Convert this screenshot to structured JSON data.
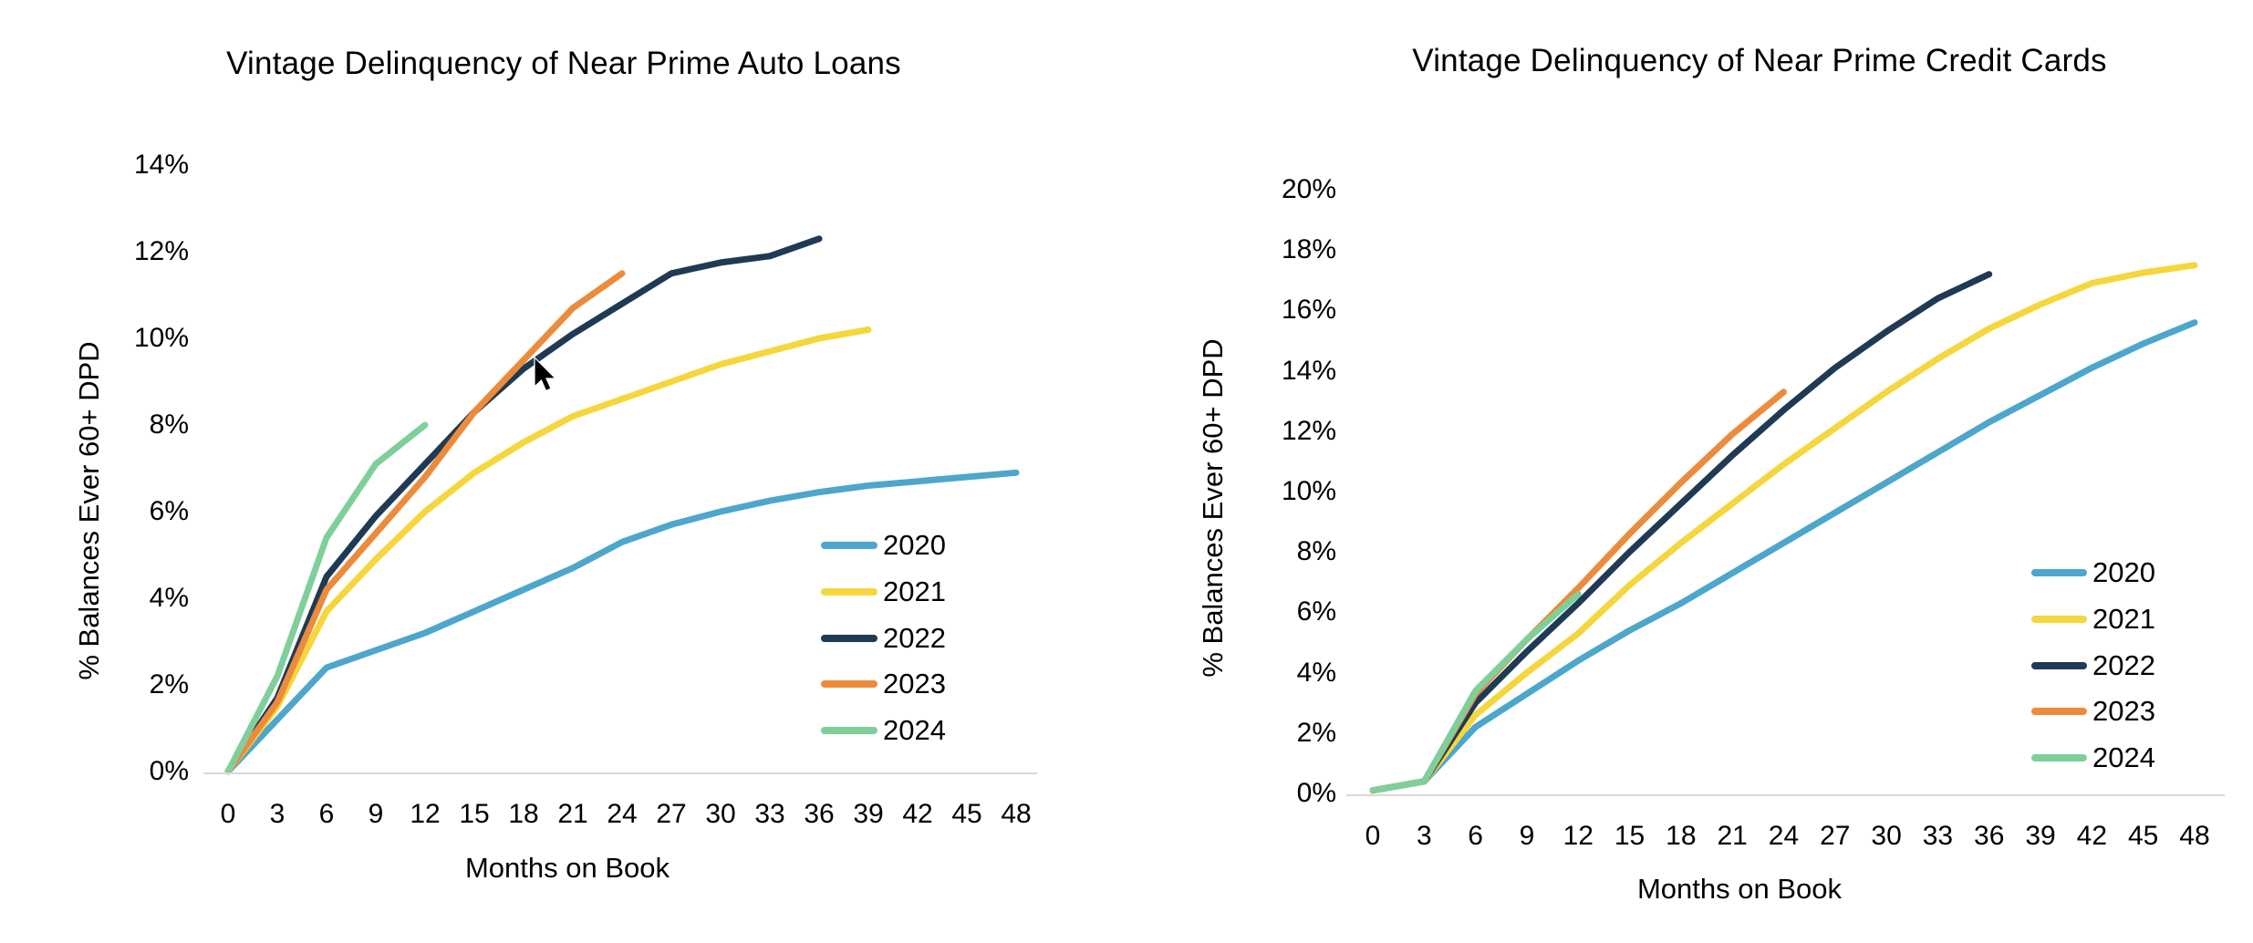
{
  "page": {
    "background": "#ffffff",
    "text_color": "#000000",
    "axis_line_color": "#d9d9d9"
  },
  "chart_data": [
    {
      "type": "line",
      "title": "Vintage Delinquency of Near Prime Auto Loans",
      "xlabel": "Months on Book",
      "ylabel": "% Balances Ever 60+ DPD",
      "x_ticks": [
        0,
        3,
        6,
        9,
        12,
        15,
        18,
        21,
        24,
        27,
        30,
        33,
        36,
        39,
        42,
        45,
        48
      ],
      "y_ticks_pct": [
        0,
        2,
        4,
        6,
        8,
        10,
        12,
        14
      ],
      "xlim": [
        0,
        48
      ],
      "ylim": [
        0,
        14
      ],
      "grid": false,
      "legend_position": "inside-right",
      "legend_entries": [
        "2020",
        "2021",
        "2022",
        "2023",
        "2024"
      ],
      "series": [
        {
          "name": "2020",
          "color": "#4DA6CB",
          "x": [
            0,
            3,
            6,
            9,
            12,
            15,
            18,
            21,
            24,
            27,
            30,
            33,
            36,
            39,
            42,
            45,
            48
          ],
          "values_pct": [
            0,
            1.2,
            2.4,
            2.8,
            3.2,
            3.7,
            4.2,
            4.7,
            5.3,
            5.7,
            6.0,
            6.25,
            6.45,
            6.6,
            6.7,
            6.8,
            6.9
          ]
        },
        {
          "name": "2021",
          "color": "#F5D63C",
          "x": [
            0,
            3,
            6,
            9,
            12,
            15,
            18,
            21,
            24,
            27,
            30,
            33,
            36,
            39
          ],
          "values_pct": [
            0,
            1.5,
            3.7,
            4.9,
            6.0,
            6.9,
            7.6,
            8.2,
            8.6,
            9.0,
            9.4,
            9.7,
            10.0,
            10.2
          ]
        },
        {
          "name": "2022",
          "color": "#1F3A54",
          "x": [
            0,
            3,
            6,
            9,
            12,
            15,
            18,
            21,
            24,
            27,
            30,
            33,
            36
          ],
          "values_pct": [
            0,
            1.7,
            4.5,
            5.9,
            7.1,
            8.3,
            9.3,
            10.1,
            10.8,
            11.5,
            11.75,
            11.9,
            12.3
          ]
        },
        {
          "name": "2023",
          "color": "#EC8B3B",
          "x": [
            0,
            3,
            6,
            9,
            12,
            15,
            18,
            21,
            24
          ],
          "values_pct": [
            0,
            1.6,
            4.2,
            5.5,
            6.8,
            8.3,
            9.5,
            10.7,
            11.5
          ]
        },
        {
          "name": "2024",
          "color": "#7FCF9B",
          "x": [
            0,
            3,
            6,
            9,
            12
          ],
          "values_pct": [
            0,
            2.2,
            5.4,
            7.1,
            8.0
          ]
        }
      ]
    },
    {
      "type": "line",
      "title": "Vintage Delinquency of Near Prime Credit Cards",
      "xlabel": "Months on Book",
      "ylabel": "% Balances Ever 60+ DPD",
      "x_ticks": [
        0,
        3,
        6,
        9,
        12,
        15,
        18,
        21,
        24,
        27,
        30,
        33,
        36,
        39,
        42,
        45,
        48
      ],
      "y_ticks_pct": [
        0,
        2,
        4,
        6,
        8,
        10,
        12,
        14,
        16,
        18,
        20
      ],
      "xlim": [
        0,
        48
      ],
      "ylim": [
        0,
        20
      ],
      "grid": false,
      "legend_position": "inside-right",
      "legend_entries": [
        "2020",
        "2021",
        "2022",
        "2023",
        "2024"
      ],
      "series": [
        {
          "name": "2020",
          "color": "#4DA6CB",
          "x": [
            0,
            3,
            6,
            9,
            12,
            15,
            18,
            21,
            24,
            27,
            30,
            33,
            36,
            39,
            42,
            45,
            48
          ],
          "values_pct": [
            0.1,
            0.4,
            2.2,
            3.3,
            4.4,
            5.4,
            6.3,
            7.3,
            8.3,
            9.3,
            10.3,
            11.3,
            12.3,
            13.2,
            14.1,
            14.9,
            15.6
          ]
        },
        {
          "name": "2021",
          "color": "#F5D63C",
          "x": [
            0,
            3,
            6,
            9,
            12,
            15,
            18,
            21,
            24,
            27,
            30,
            33,
            36,
            39,
            42,
            45,
            48
          ],
          "values_pct": [
            0.1,
            0.4,
            2.6,
            4.0,
            5.3,
            6.9,
            8.3,
            9.6,
            10.9,
            12.1,
            13.3,
            14.4,
            15.4,
            16.2,
            16.9,
            17.25,
            17.5
          ]
        },
        {
          "name": "2022",
          "color": "#1F3A54",
          "x": [
            0,
            3,
            6,
            9,
            12,
            15,
            18,
            21,
            24,
            27,
            30,
            33,
            36
          ],
          "values_pct": [
            0.1,
            0.4,
            3.0,
            4.7,
            6.3,
            8.0,
            9.6,
            11.2,
            12.7,
            14.1,
            15.3,
            16.4,
            17.2
          ]
        },
        {
          "name": "2023",
          "color": "#EC8B3B",
          "x": [
            0,
            3,
            6,
            9,
            12,
            15,
            18,
            21,
            24
          ],
          "values_pct": [
            0.1,
            0.4,
            3.3,
            5.1,
            6.8,
            8.6,
            10.3,
            11.9,
            13.3
          ]
        },
        {
          "name": "2024",
          "color": "#7FCF9B",
          "x": [
            0,
            3,
            6,
            9,
            12
          ],
          "values_pct": [
            0.1,
            0.4,
            3.4,
            5.1,
            6.6
          ]
        }
      ]
    }
  ]
}
